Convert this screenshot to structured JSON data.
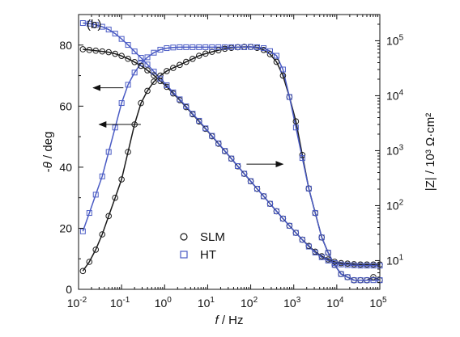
{
  "chart_data": {
    "type": "scatter",
    "panel_label": "(b)",
    "xlabel": "f / Hz",
    "ylabel_left": "-θ / deg",
    "ylabel_right": "|Z| / 10³ Ω·cm²",
    "x_scale": "log",
    "xlim": [
      0.01,
      100000
    ],
    "ylim_left": [
      0,
      90
    ],
    "y_right_scale": "log",
    "ylim_right": [
      3,
      300000
    ],
    "x_ticks": [
      "10-2",
      "10-1",
      "100",
      "101",
      "102",
      "103",
      "104",
      "105"
    ],
    "y_left_ticks": [
      "0",
      "20",
      "40",
      "60",
      "80"
    ],
    "y_right_ticks": [
      "101",
      "102",
      "103",
      "104",
      "105"
    ],
    "grid": false,
    "legend_position": "bottom-center",
    "legend": [
      {
        "label": "SLM",
        "marker": "circle",
        "color": "#1a1a1a"
      },
      {
        "label": "HT",
        "marker": "square",
        "color": "#4a5bc4"
      }
    ],
    "series": [
      {
        "name": "SLM",
        "quantity": "phase angle (-θ, deg)",
        "axis": "left",
        "marker": "circle",
        "color": "#1a1a1a",
        "x": [
          0.0126,
          0.0178,
          0.0251,
          0.0355,
          0.0501,
          0.0708,
          0.1,
          0.141,
          0.2,
          0.282,
          0.398,
          0.562,
          0.794,
          1.12,
          1.58,
          2.24,
          3.16,
          4.47,
          6.31,
          8.91,
          12.6,
          17.8,
          25.1,
          35.5,
          50.1,
          70.8,
          100,
          141,
          200,
          282,
          398,
          562,
          794,
          1122,
          1585,
          2239,
          3162,
          4467,
          6310,
          8913,
          12589,
          17783,
          25119,
          35481,
          50119,
          70795,
          100000
        ],
        "y": [
          6,
          9,
          13,
          18,
          24,
          30,
          36,
          45,
          54,
          61,
          65,
          68,
          70,
          71.5,
          72.5,
          73.5,
          74.5,
          75.5,
          76.5,
          77.2,
          77.8,
          78.3,
          78.8,
          79.1,
          79.3,
          79.4,
          79.4,
          79.1,
          78.4,
          77,
          74.5,
          70,
          63,
          55,
          44,
          33,
          25,
          17,
          12,
          8,
          5,
          4,
          3,
          3,
          3,
          4,
          3
        ]
      },
      {
        "name": "HT",
        "quantity": "phase angle (-θ, deg)",
        "axis": "left",
        "marker": "square",
        "color": "#4a5bc4",
        "x": [
          0.0126,
          0.0178,
          0.0251,
          0.0355,
          0.0501,
          0.0708,
          0.1,
          0.141,
          0.2,
          0.282,
          0.398,
          0.562,
          0.794,
          1.12,
          1.58,
          2.24,
          3.16,
          4.47,
          6.31,
          8.91,
          12.6,
          17.8,
          25.1,
          35.5,
          50.1,
          70.8,
          100,
          141,
          200,
          282,
          398,
          562,
          794,
          1122,
          1585,
          2239,
          3162,
          4467,
          6310,
          8913,
          12589,
          17783,
          25119,
          35481,
          50119,
          70795,
          100000
        ],
        "y": [
          19,
          25,
          31,
          37,
          45,
          53,
          61,
          67,
          71,
          74,
          76,
          77.5,
          78.5,
          79,
          79.2,
          79.3,
          79.3,
          79.3,
          79.3,
          79.3,
          79.3,
          79.3,
          79.3,
          79.3,
          79.3,
          79.3,
          79.4,
          79.3,
          79,
          78,
          76.5,
          72,
          63,
          53,
          43,
          33,
          25,
          17,
          12,
          8,
          5,
          4,
          3,
          3,
          3,
          3,
          3
        ]
      },
      {
        "name": "SLM",
        "quantity": "impedance modulus (|Z|, 10^3 Ω·cm²)",
        "axis": "right",
        "marker": "circle",
        "color": "#1a1a1a",
        "x": [
          0.0126,
          0.0178,
          0.0251,
          0.0355,
          0.0501,
          0.0708,
          0.1,
          0.141,
          0.2,
          0.282,
          0.398,
          0.562,
          0.794,
          1.12,
          1.58,
          2.24,
          3.16,
          4.47,
          6.31,
          8.91,
          12.6,
          17.8,
          25.1,
          35.5,
          50.1,
          70.8,
          100,
          141,
          200,
          282,
          398,
          562,
          794,
          1122,
          1585,
          2239,
          3162,
          4467,
          6310,
          8913,
          12589,
          17783,
          25119,
          35481,
          50119,
          70795,
          100000
        ],
        "y": [
          70000,
          68000,
          66000,
          64000,
          62000,
          58000,
          53000,
          47000,
          41000,
          35000,
          29000,
          23500,
          18500,
          14500,
          11000,
          8300,
          6200,
          4600,
          3400,
          2500,
          1830,
          1340,
          980,
          715,
          520,
          380,
          277,
          202,
          148,
          108,
          79,
          58,
          43,
          32,
          24,
          18.5,
          14.5,
          12,
          10.5,
          9.5,
          9,
          8.8,
          8.6,
          8.5,
          8.5,
          8.5,
          8.5
        ]
      },
      {
        "name": "HT",
        "quantity": "impedance modulus (|Z|, 10^3 Ω·cm²)",
        "axis": "right",
        "marker": "square",
        "color": "#4a5bc4",
        "x": [
          0.0126,
          0.0178,
          0.0251,
          0.0355,
          0.0501,
          0.0708,
          0.1,
          0.141,
          0.2,
          0.282,
          0.398,
          0.562,
          0.794,
          1.12,
          1.58,
          2.24,
          3.16,
          4.47,
          6.31,
          8.91,
          12.6,
          17.8,
          25.1,
          35.5,
          50.1,
          70.8,
          100,
          141,
          200,
          282,
          398,
          562,
          794,
          1122,
          1585,
          2239,
          3162,
          4467,
          6310,
          8913,
          12589,
          17783,
          25119,
          35481,
          50119,
          70795,
          100000
        ],
        "y": [
          210000,
          205000,
          195000,
          180000,
          160000,
          135000,
          108000,
          84000,
          64000,
          49000,
          37000,
          27500,
          20500,
          15500,
          11500,
          8600,
          6400,
          4700,
          3500,
          2550,
          1860,
          1360,
          990,
          720,
          525,
          382,
          279,
          203,
          148,
          108,
          79,
          58,
          43,
          32,
          24,
          18,
          14,
          11.5,
          10,
          9,
          8.5,
          8.3,
          8.2,
          8.1,
          8.1,
          8.1,
          8.1
        ]
      }
    ],
    "annotations": [
      {
        "type": "arrow",
        "direction": "left",
        "points_to": "left axis (phase of SLM)"
      },
      {
        "type": "arrow",
        "direction": "left",
        "points_to": "left axis (phase of HT)"
      },
      {
        "type": "arrow",
        "direction": "right",
        "points_to": "right axis (|Z|)"
      }
    ]
  }
}
